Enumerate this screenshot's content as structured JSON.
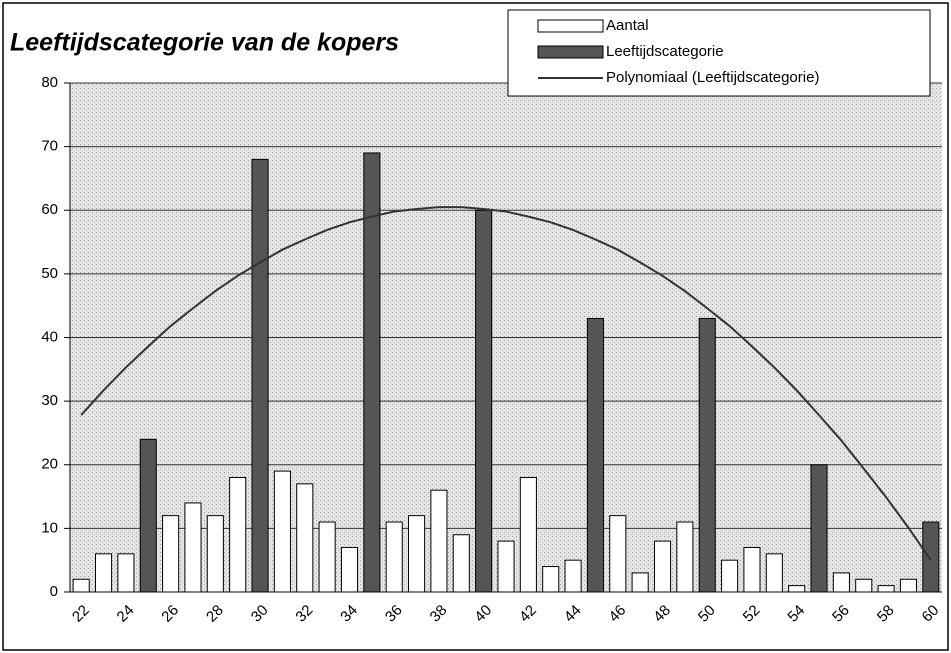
{
  "chart_data": {
    "type": "bar",
    "title": "Leeftijdscategorie van de kopers",
    "categories": [
      22,
      null,
      24,
      null,
      26,
      null,
      28,
      null,
      30,
      null,
      32,
      null,
      34,
      null,
      36,
      null,
      38,
      null,
      40,
      null,
      42,
      null,
      44,
      null,
      46,
      null,
      48,
      null,
      50,
      null,
      52,
      null,
      54,
      null,
      56,
      null,
      58,
      null,
      60
    ],
    "series": [
      {
        "name": "Aantal",
        "color": "#ffffff",
        "values": [
          2,
          6,
          6,
          null,
          12,
          14,
          12,
          18,
          null,
          19,
          17,
          11,
          7,
          null,
          11,
          12,
          16,
          9,
          null,
          8,
          18,
          4,
          5,
          null,
          12,
          3,
          8,
          11,
          null,
          5,
          7,
          6,
          1,
          null,
          3,
          2,
          1,
          2,
          null
        ]
      },
      {
        "name": "Leeftijdscategorie",
        "color": "#555555",
        "values": [
          null,
          null,
          null,
          24,
          null,
          null,
          null,
          null,
          68,
          null,
          null,
          null,
          null,
          69,
          null,
          null,
          null,
          null,
          60,
          null,
          null,
          null,
          null,
          43,
          null,
          null,
          null,
          null,
          43,
          null,
          null,
          null,
          null,
          20,
          null,
          null,
          null,
          null,
          11
        ]
      },
      {
        "name": "Polynomiaal (Leeftijdscategorie)",
        "type": "line",
        "color": "#333333",
        "values": [
          27.8,
          31.7,
          35.3,
          38.6,
          41.8,
          44.6,
          47.3,
          49.7,
          51.8,
          53.8,
          55.4,
          56.9,
          58.1,
          59.0,
          59.8,
          60.2,
          60.5,
          60.5,
          60.2,
          59.8,
          59.0,
          58.1,
          56.9,
          55.4,
          53.8,
          51.8,
          49.7,
          47.3,
          44.6,
          41.8,
          38.6,
          35.3,
          31.7,
          27.8,
          23.8,
          19.4,
          14.9,
          10.1,
          5.0
        ]
      }
    ],
    "ylim": [
      0,
      80
    ],
    "yticks": [
      0,
      10,
      20,
      30,
      40,
      50,
      60,
      70,
      80
    ],
    "grid": true,
    "legend": "top-right"
  }
}
